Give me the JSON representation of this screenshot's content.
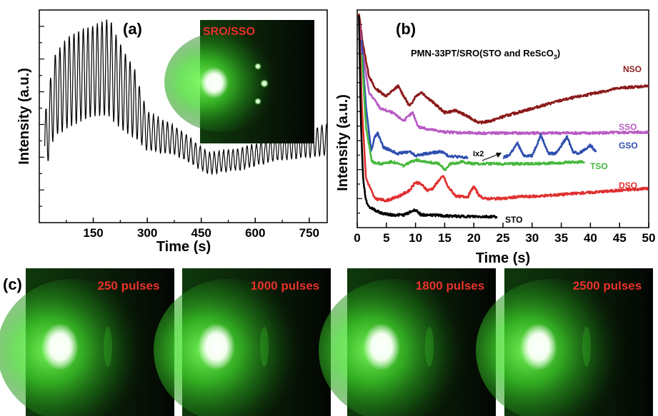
{
  "colors": {
    "trace_a": "#000000",
    "NSO": "#8b1a1a",
    "SSO": "#b85bc4",
    "GSO": "#2f4fb0",
    "TSO": "#46b83c",
    "DSO": "#e03030",
    "STO": "#000000",
    "rheed_label": "#e8322a",
    "rheed_glow": "#3fd62a"
  },
  "panel_a": {
    "label": "(a)",
    "inset_label": "SRO/SSO",
    "chart_data": {
      "type": "line",
      "xlabel": "Time (s)",
      "ylabel": "Intensity (a.u.)",
      "xlim": [
        0,
        800
      ],
      "xticks": [
        "150",
        "300",
        "450",
        "600",
        "750"
      ],
      "xtick_values": [
        150,
        300,
        450,
        600,
        750
      ],
      "ylim": [
        0,
        1
      ],
      "y_ticks_labeled": false,
      "oscillation": {
        "x_start": 15,
        "x_end": 800,
        "period_s": 13
      },
      "envelope": [
        {
          "x": 15,
          "lo": 0.22,
          "hi": 0.5
        },
        {
          "x": 40,
          "lo": 0.4,
          "hi": 0.78
        },
        {
          "x": 80,
          "lo": 0.45,
          "hi": 0.88
        },
        {
          "x": 150,
          "lo": 0.5,
          "hi": 0.93
        },
        {
          "x": 195,
          "lo": 0.5,
          "hi": 0.96
        },
        {
          "x": 225,
          "lo": 0.44,
          "hi": 0.84
        },
        {
          "x": 265,
          "lo": 0.4,
          "hi": 0.72
        },
        {
          "x": 300,
          "lo": 0.34,
          "hi": 0.52
        },
        {
          "x": 380,
          "lo": 0.32,
          "hi": 0.45
        },
        {
          "x": 470,
          "lo": 0.23,
          "hi": 0.33
        },
        {
          "x": 560,
          "lo": 0.25,
          "hi": 0.35
        },
        {
          "x": 650,
          "lo": 0.29,
          "hi": 0.4
        },
        {
          "x": 800,
          "lo": 0.32,
          "hi": 0.46
        }
      ]
    }
  },
  "panel_b": {
    "label": "(b)",
    "title": "PMN-33PT/SRO(STO and ReScO",
    "title_sub": "3",
    "title_end": ")",
    "annotation": "Ix2",
    "chart_data": {
      "type": "line",
      "xlabel": "Time (s)",
      "ylabel": "Intensity (a.u.)",
      "xlim": [
        0,
        50
      ],
      "xticks": [
        "0",
        "5",
        "10",
        "15",
        "20",
        "25",
        "30",
        "35",
        "40",
        "45",
        "50"
      ],
      "xtick_values": [
        0,
        5,
        10,
        15,
        20,
        25,
        30,
        35,
        40,
        45,
        50
      ],
      "ylim": [
        0,
        1
      ],
      "y_ticks_labeled": false,
      "series": [
        {
          "name": "NSO",
          "x_end": 50,
          "points": [
            [
              0.3,
              1.0
            ],
            [
              1,
              0.85
            ],
            [
              2,
              0.7
            ],
            [
              3,
              0.64
            ],
            [
              5,
              0.6
            ],
            [
              7,
              0.65
            ],
            [
              8,
              0.6
            ],
            [
              9,
              0.55
            ],
            [
              10,
              0.6
            ],
            [
              11,
              0.62
            ],
            [
              13,
              0.57
            ],
            [
              15,
              0.52
            ],
            [
              17,
              0.53
            ],
            [
              19,
              0.5
            ],
            [
              21,
              0.47
            ],
            [
              23,
              0.48
            ],
            [
              25,
              0.5
            ],
            [
              30,
              0.54
            ],
            [
              35,
              0.58
            ],
            [
              40,
              0.61
            ],
            [
              45,
              0.64
            ],
            [
              50,
              0.65
            ]
          ]
        },
        {
          "name": "SSO",
          "x_end": 50,
          "points": [
            [
              0.4,
              0.95
            ],
            [
              1,
              0.8
            ],
            [
              2,
              0.62
            ],
            [
              4,
              0.54
            ],
            [
              6,
              0.52
            ],
            [
              8,
              0.48
            ],
            [
              9.5,
              0.52
            ],
            [
              10.5,
              0.45
            ],
            [
              12,
              0.44
            ],
            [
              15,
              0.425
            ],
            [
              20,
              0.42
            ],
            [
              30,
              0.42
            ],
            [
              40,
              0.42
            ],
            [
              50,
              0.425
            ]
          ]
        },
        {
          "name": "GSO",
          "x_end": 41,
          "gap": [
            19,
            25
          ],
          "points": [
            [
              0.7,
              0.88
            ],
            [
              1.5,
              0.55
            ],
            [
              2.4,
              0.33
            ],
            [
              3,
              0.4
            ],
            [
              3.5,
              0.42
            ],
            [
              4.5,
              0.35
            ],
            [
              7,
              0.32
            ],
            [
              9,
              0.33
            ],
            [
              10,
              0.31
            ],
            [
              12,
              0.32
            ],
            [
              14.5,
              0.33
            ],
            [
              15.5,
              0.31
            ],
            [
              18.5,
              0.3
            ],
            [
              25,
              0.3
            ],
            [
              26,
              0.31
            ],
            [
              27.5,
              0.37
            ],
            [
              28.5,
              0.31
            ],
            [
              30,
              0.31
            ],
            [
              31.5,
              0.41
            ],
            [
              32.8,
              0.32
            ],
            [
              34,
              0.32
            ],
            [
              36,
              0.4
            ],
            [
              37,
              0.33
            ],
            [
              38,
              0.32
            ],
            [
              40,
              0.36
            ],
            [
              41,
              0.33
            ]
          ]
        },
        {
          "name": "TSO",
          "x_end": 39,
          "points": [
            [
              0.8,
              0.8
            ],
            [
              1.5,
              0.45
            ],
            [
              2.5,
              0.28
            ],
            [
              4,
              0.27
            ],
            [
              6,
              0.28
            ],
            [
              8,
              0.26
            ],
            [
              10,
              0.29
            ],
            [
              12,
              0.28
            ],
            [
              14,
              0.27
            ],
            [
              15,
              0.24
            ],
            [
              16,
              0.27
            ],
            [
              18,
              0.28
            ],
            [
              20,
              0.27
            ],
            [
              25,
              0.27
            ],
            [
              30,
              0.27
            ],
            [
              35,
              0.275
            ],
            [
              39,
              0.28
            ]
          ]
        },
        {
          "name": "DSO",
          "x_end": 50,
          "points": [
            [
              0.3,
              1.0
            ],
            [
              0.8,
              0.55
            ],
            [
              1.5,
              0.2
            ],
            [
              3,
              0.1
            ],
            [
              5,
              0.09
            ],
            [
              7,
              0.11
            ],
            [
              9,
              0.14
            ],
            [
              10,
              0.18
            ],
            [
              11,
              0.17
            ],
            [
              12,
              0.14
            ],
            [
              13,
              0.15
            ],
            [
              14,
              0.19
            ],
            [
              14.8,
              0.21
            ],
            [
              15.5,
              0.16
            ],
            [
              17,
              0.11
            ],
            [
              19,
              0.11
            ],
            [
              20,
              0.16
            ],
            [
              21,
              0.11
            ],
            [
              22,
              0.1
            ],
            [
              25,
              0.1
            ],
            [
              28,
              0.11
            ],
            [
              30,
              0.11
            ],
            [
              35,
              0.12
            ],
            [
              40,
              0.13
            ],
            [
              45,
              0.14
            ],
            [
              50,
              0.15
            ]
          ]
        },
        {
          "name": "STO",
          "x_end": 24,
          "points": [
            [
              0.3,
              1.0
            ],
            [
              0.6,
              0.5
            ],
            [
              1,
              0.2
            ],
            [
              1.5,
              0.09
            ],
            [
              2,
              0.06
            ],
            [
              4,
              0.03
            ],
            [
              6,
              0.02
            ],
            [
              8,
              0.02
            ],
            [
              9.5,
              0.04
            ],
            [
              10,
              0.045
            ],
            [
              11,
              0.02
            ],
            [
              13,
              0.02
            ],
            [
              15,
              0.015
            ],
            [
              20,
              0.012
            ],
            [
              24,
              0.012
            ]
          ]
        }
      ]
    }
  },
  "panel_c": {
    "label": "(c)",
    "frames": [
      {
        "label": "250 pulses"
      },
      {
        "label": "1000 pulses"
      },
      {
        "label": "1800 pulses"
      },
      {
        "label": "2500 pulses"
      }
    ]
  }
}
